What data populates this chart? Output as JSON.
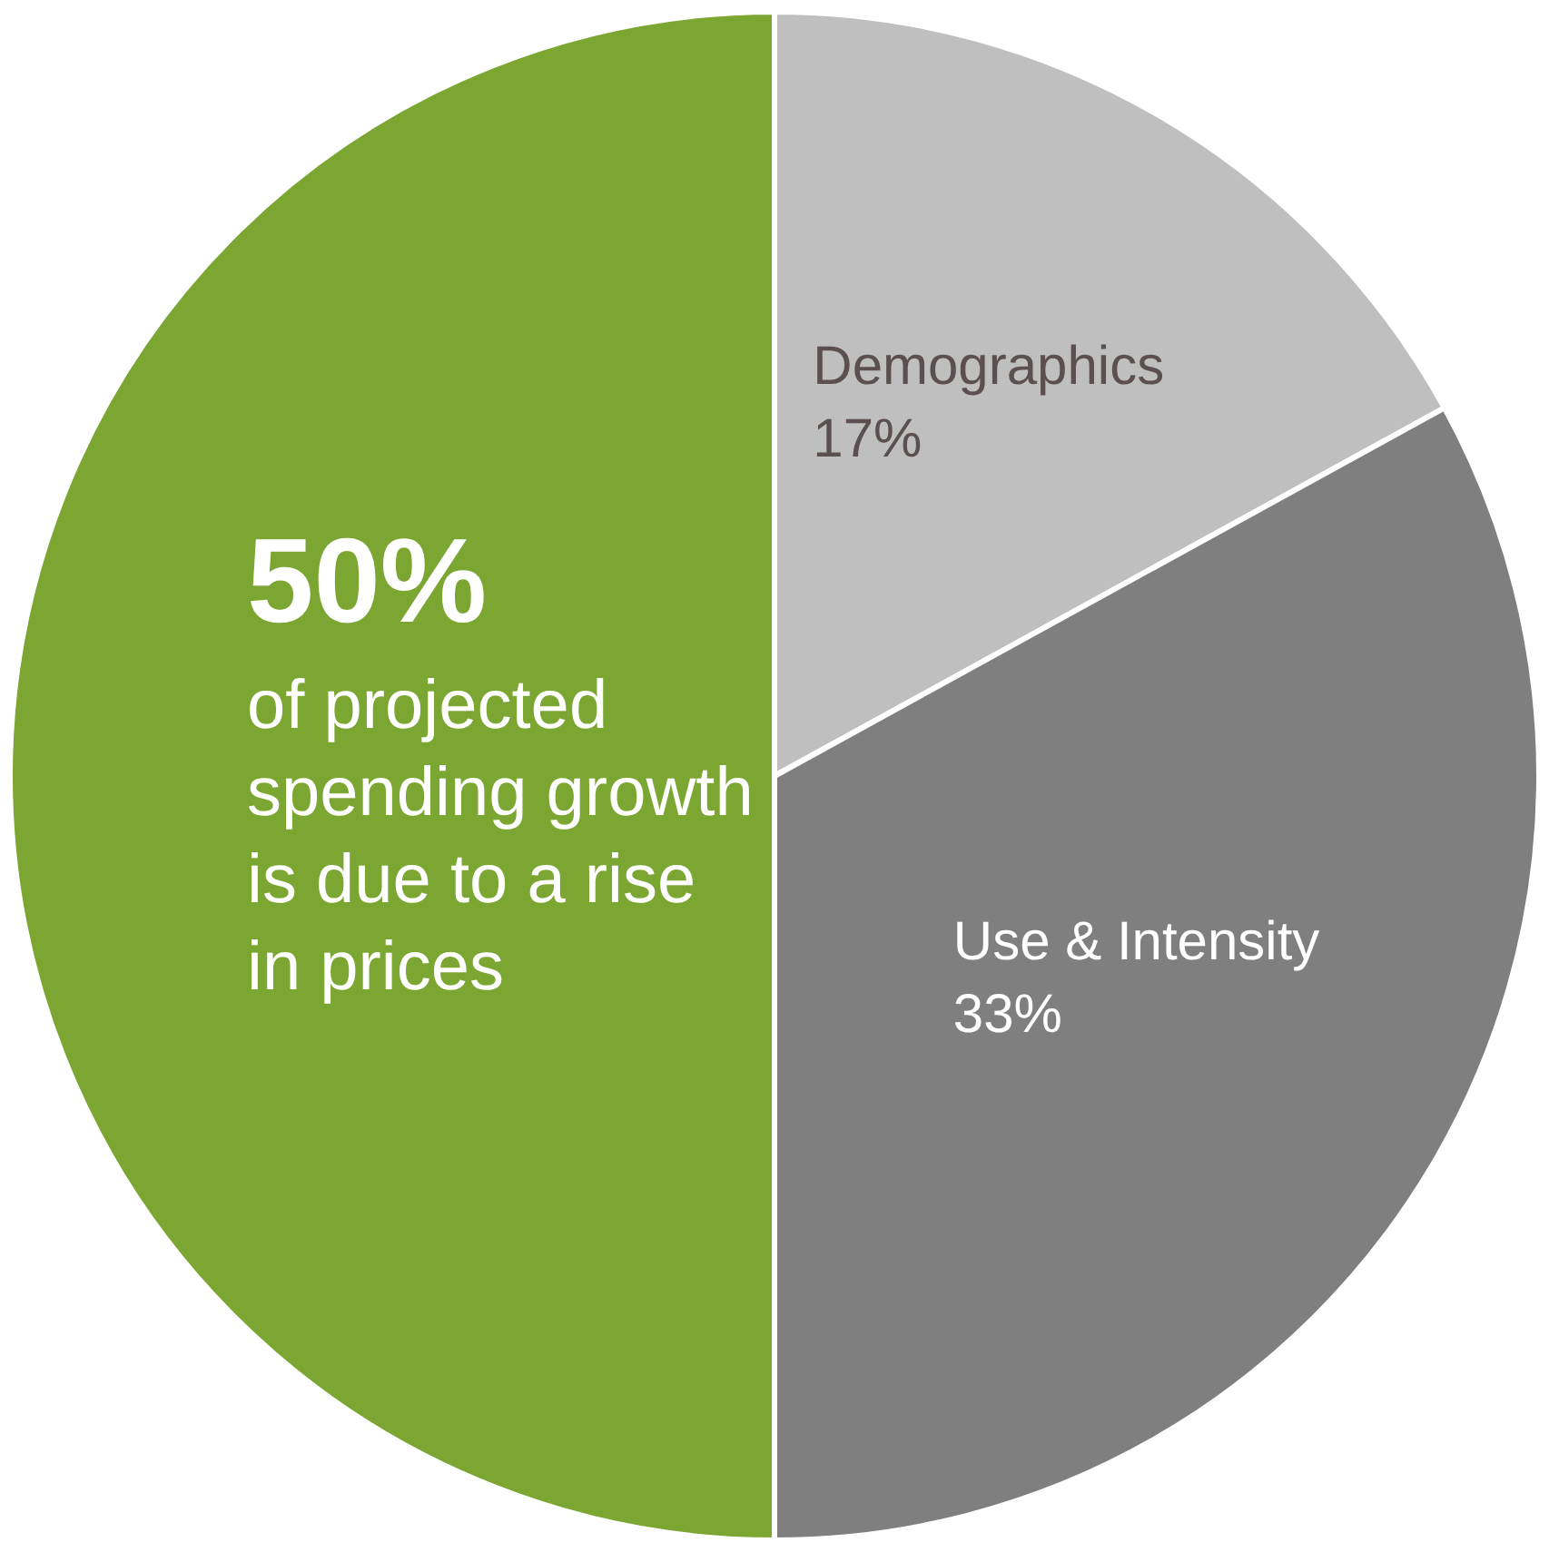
{
  "chart_data": {
    "type": "pie",
    "categories": [
      "Demographics",
      "Use & Intensity",
      "of projected spending growth is due to a rise in prices"
    ],
    "values": [
      17,
      33,
      50
    ],
    "colors": [
      "#bfbfbf",
      "#7f7f7f",
      "#7ba631"
    ],
    "value_labels": [
      "17%",
      "33%",
      "50%"
    ],
    "legend": false
  }
}
